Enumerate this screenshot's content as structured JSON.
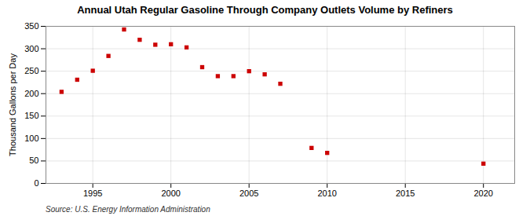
{
  "chart_data": {
    "type": "scatter",
    "title": "Annual Utah Regular Gasoline Through Company Outlets Volume by Refiners",
    "ylabel": "Thousand Gallons per Day",
    "caption": "Source: U.S. Energy Information Administration",
    "x": [
      1993,
      1994,
      1995,
      1996,
      1997,
      1998,
      1999,
      2000,
      2001,
      2002,
      2003,
      2004,
      2005,
      2006,
      2007,
      2009,
      2010,
      2020
    ],
    "values": [
      204,
      231,
      251,
      284,
      343,
      320,
      309,
      310,
      303,
      259,
      239,
      239,
      250,
      243,
      222,
      79,
      68,
      44
    ],
    "color": "#cc0000",
    "marker": "square",
    "xlim": [
      1992,
      2022
    ],
    "ylim": [
      0,
      350
    ],
    "xticks": [
      1995,
      2000,
      2005,
      2010,
      2015,
      2020
    ],
    "yticks": [
      0,
      50,
      100,
      150,
      200,
      250,
      300,
      350
    ],
    "grid": true
  }
}
